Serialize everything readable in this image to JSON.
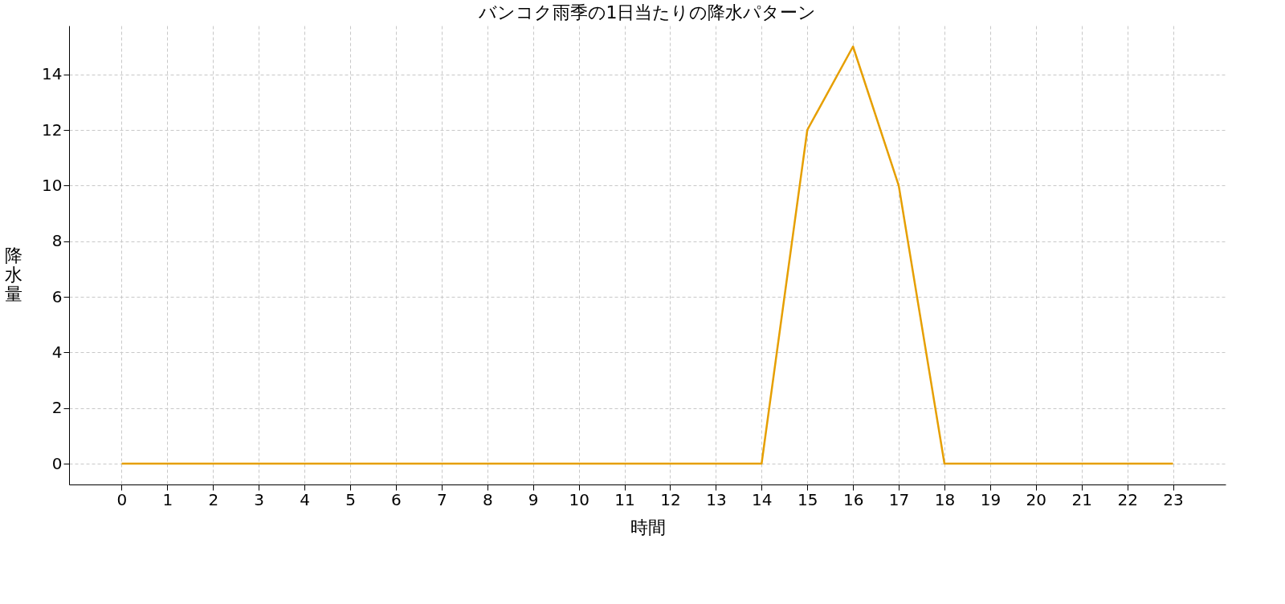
{
  "chart_data": {
    "type": "line",
    "title": "バンコク雨季の1日当たりの降水パターン",
    "xlabel": "時間",
    "ylabel": "降水量",
    "x": [
      0,
      1,
      2,
      3,
      4,
      5,
      6,
      7,
      8,
      9,
      10,
      11,
      12,
      13,
      14,
      15,
      16,
      17,
      18,
      19,
      20,
      21,
      22,
      23
    ],
    "series": [
      {
        "color": "#e69f00",
        "values": [
          0,
          0,
          0,
          0,
          0,
          0,
          0,
          0,
          0,
          0,
          0,
          0,
          0,
          0,
          0,
          12,
          15,
          10,
          0,
          0,
          0,
          0,
          0,
          0
        ]
      }
    ],
    "xlim": [
      -1.15,
      24.15
    ],
    "ylim": [
      -0.75,
      15.75
    ],
    "xticks": [
      0,
      1,
      2,
      3,
      4,
      5,
      6,
      7,
      8,
      9,
      10,
      11,
      12,
      13,
      14,
      15,
      16,
      17,
      18,
      19,
      20,
      21,
      22,
      23
    ],
    "yticks": [
      0,
      2,
      4,
      6,
      8,
      10,
      12,
      14
    ],
    "grid": true,
    "marker": "none",
    "line_style": "solid",
    "legend": false
  }
}
